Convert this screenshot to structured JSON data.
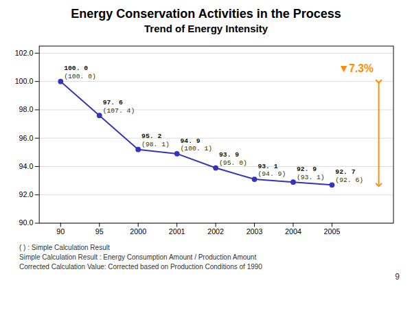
{
  "chart_data": {
    "type": "line",
    "title": "Energy Conservation Activities in the Process",
    "subtitle": "Trend of Energy Intensity",
    "categories": [
      "90",
      "95",
      "2000",
      "2001",
      "2002",
      "2003",
      "2004",
      "2005"
    ],
    "values": [
      100.0,
      97.6,
      95.2,
      94.9,
      93.9,
      93.1,
      92.9,
      92.7
    ],
    "value_labels": [
      "100. 0",
      "97. 6",
      "95. 2",
      "94. 9",
      "93. 9",
      "93. 1",
      "92. 9",
      "92. 7"
    ],
    "simple_values": [
      100.0,
      107.4,
      98.1,
      100.1,
      95.0,
      94.9,
      93.1,
      92.6
    ],
    "simple_value_labels": [
      "(100. 0)",
      "(107. 4)",
      "(98. 1)",
      "(100. 1)",
      "(95. 0)",
      "(94. 9)",
      "(93. 1)",
      "(92. 6)"
    ],
    "color": "#3333BB",
    "marker": "o",
    "data_labels": true,
    "ylim": [
      90.0,
      102.5
    ],
    "yticks": [
      {
        "value": 90.0,
        "label": "90.0"
      },
      {
        "value": 92.0,
        "label": "92.0"
      },
      {
        "value": 94.0,
        "label": "94.0"
      },
      {
        "value": 96.0,
        "label": "96.0"
      },
      {
        "value": 98.0,
        "label": "98.0"
      },
      {
        "value": 100.0,
        "label": "100.0"
      },
      {
        "value": 102.0,
        "label": "102.0"
      }
    ],
    "grid": true,
    "annotations": [
      {
        "text": "▼7.3%",
        "color": "#FF8C00"
      }
    ],
    "arrow": {
      "from": 100.0,
      "to": 92.7,
      "color": "#FF8C00"
    },
    "footnotes": [
      "(  ) : Simple Calculation  Result",
      "Simple Calculation  Result : Energy Consumption  Amount / Production Amount",
      "Corrected Calculation  Value: Corrected based on Production Conditions of 1990"
    ],
    "page_number": "9"
  }
}
